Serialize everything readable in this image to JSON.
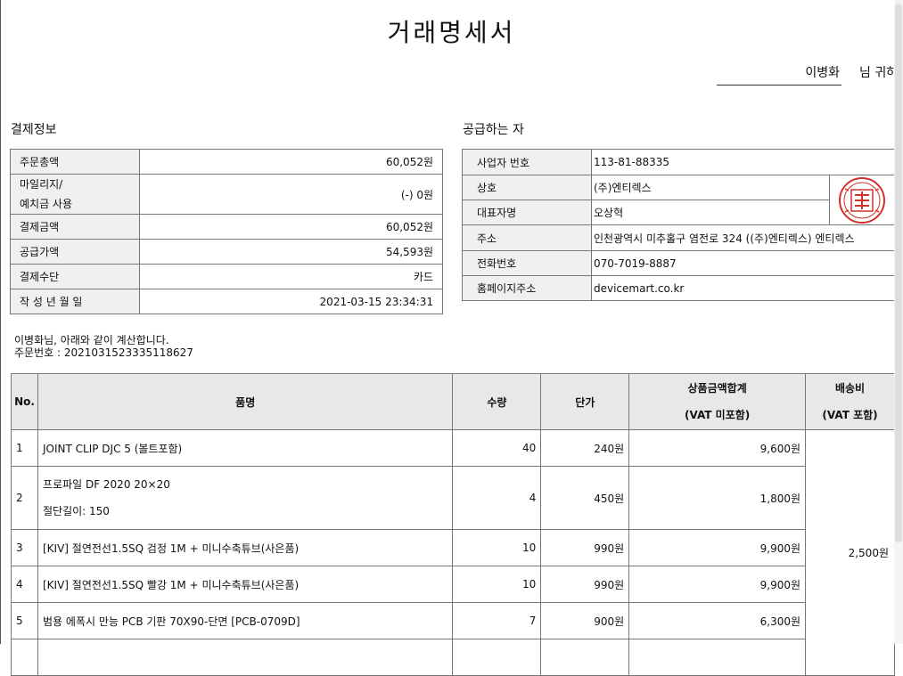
{
  "title": "거래명세서",
  "recipient": {
    "name": "이병화",
    "honorific": "님 귀하"
  },
  "payment": {
    "heading": "결제정보",
    "rows": [
      {
        "label": "주문총액",
        "value": "60,052원"
      },
      {
        "label": "마일리지/",
        "label2": "예치금 사용",
        "value": "(-) 0원"
      },
      {
        "label": "결제금액",
        "value": "60,052원"
      },
      {
        "label": "공급가액",
        "value": "54,593원"
      },
      {
        "label": "결제수단",
        "value": "카드"
      },
      {
        "label": "작 성 년 월 일",
        "value": "2021-03-15 23:34:31"
      }
    ]
  },
  "supplier": {
    "heading": "공급하는 자",
    "rows": [
      {
        "label": "사업자 번호",
        "value": "113-81-88335"
      },
      {
        "label": "상호",
        "value": "(주)엔티렉스"
      },
      {
        "label": "대표자명",
        "value": "오상혁"
      },
      {
        "label": "주소",
        "value": "인천광역시 미추홀구 염전로 324 ((주)엔티렉스) 엔티렉스"
      },
      {
        "label": "전화번호",
        "value": "070-7019-8887"
      },
      {
        "label": "홈페이지주소",
        "value": "devicemart.co.kr"
      }
    ],
    "stamp_color": "#d0312d"
  },
  "message": {
    "line1": "이병화님, 아래와 같이 계산합니다.",
    "line2": "주문번호 : 20210315233351186​27"
  },
  "items": {
    "headers": {
      "no": "No.",
      "name": "품명",
      "qty": "수량",
      "price": "단가",
      "subtotal_1": "상품금액합계",
      "subtotal_2": "(VAT 미포함)",
      "shipping_1": "배송비",
      "shipping_2": "(VAT 포함)"
    },
    "rows": [
      {
        "no": "1",
        "name": "JOINT CLIP DJC 5 (볼트포함)",
        "qty": "40",
        "price": "240원",
        "subtotal": "9,600원"
      },
      {
        "no": "2",
        "name": "프로파일 DF 2020 20×20",
        "option": "절단길이: 150",
        "qty": "4",
        "price": "450원",
        "subtotal": "1,800원"
      },
      {
        "no": "3",
        "name": "[KIV] 절연전선1.5SQ 검정 1M + 미니수축튜브(사은품)",
        "qty": "10",
        "price": "990원",
        "subtotal": "9,900원"
      },
      {
        "no": "4",
        "name": "[KIV] 절연전선1.5SQ 빨강 1M + 미니수축튜브(사은품)",
        "qty": "10",
        "price": "990원",
        "subtotal": "9,900원"
      },
      {
        "no": "5",
        "name": "범용 에폭시 만능 PCB 기판 70X90-단면 [PCB-0709D]",
        "qty": "7",
        "price": "900원",
        "subtotal": "6,300원"
      }
    ],
    "shipping": "2,500원"
  }
}
